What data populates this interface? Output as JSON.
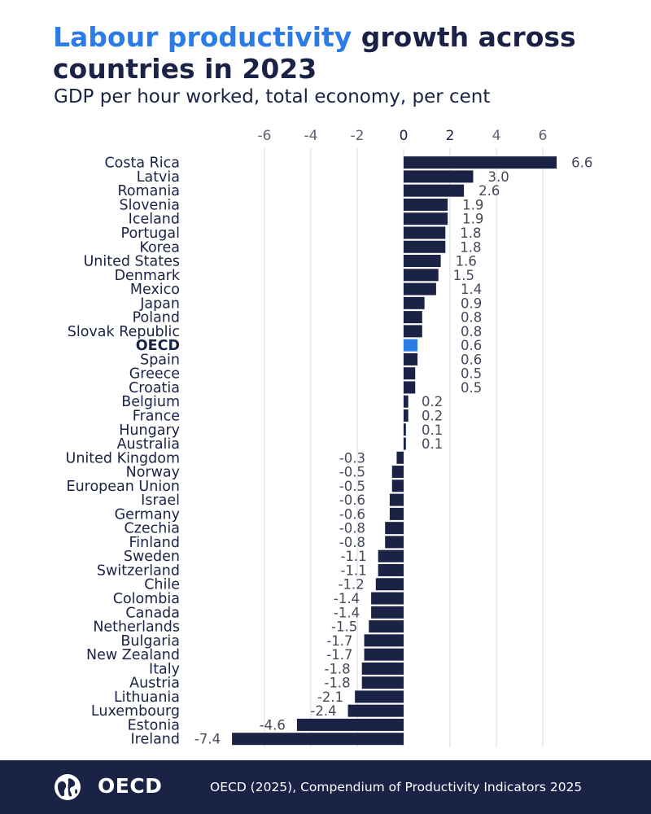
{
  "title": {
    "highlight": "Labour productivity",
    "rest": " growth across countries in 2023"
  },
  "subtitle": "GDP per hour worked, total economy, per cent",
  "colors": {
    "bar": "#1a2245",
    "highlight_bar": "#2c7ce8",
    "accent": "#2c7ce8",
    "grid": "#d9dbe3",
    "text": "#1a2245"
  },
  "chart_data": {
    "type": "bar",
    "orientation": "horizontal",
    "title": "Labour productivity growth across countries in 2023",
    "subtitle": "GDP per hour worked, total economy, per cent",
    "xlim": [
      -7.4,
      7
    ],
    "xticks": [
      -6,
      -4,
      -2,
      0,
      2,
      4,
      6
    ],
    "grid": true,
    "highlight": "OECD",
    "categories": [
      "Costa Rica",
      "Latvia",
      "Romania",
      "Slovenia",
      "Iceland",
      "Portugal",
      "Korea",
      "United States",
      "Denmark",
      "Mexico",
      "Japan",
      "Poland",
      "Slovak Republic",
      "OECD",
      "Spain",
      "Greece",
      "Croatia",
      "Belgium",
      "France",
      "Hungary",
      "Australia",
      "United Kingdom",
      "Norway",
      "European Union",
      "Israel",
      "Germany",
      "Czechia",
      "Finland",
      "Sweden",
      "Switzerland",
      "Chile",
      "Colombia",
      "Canada",
      "Netherlands",
      "Bulgaria",
      "New Zealand",
      "Italy",
      "Austria",
      "Lithuania",
      "Luxembourg",
      "Estonia",
      "Ireland"
    ],
    "values": [
      6.6,
      3.0,
      2.6,
      1.9,
      1.9,
      1.8,
      1.8,
      1.6,
      1.5,
      1.4,
      0.9,
      0.8,
      0.8,
      0.6,
      0.6,
      0.5,
      0.5,
      0.2,
      0.2,
      0.1,
      0.1,
      -0.3,
      -0.5,
      -0.5,
      -0.6,
      -0.6,
      -0.8,
      -0.8,
      -1.1,
      -1.1,
      -1.2,
      -1.4,
      -1.4,
      -1.5,
      -1.7,
      -1.7,
      -1.8,
      -1.8,
      -2.1,
      -2.4,
      -4.6,
      -7.4
    ],
    "labels": [
      "6.6",
      "3.0",
      "2.6",
      "1.9",
      "1.9",
      "1.8",
      "1.8",
      "1.6",
      "1.5",
      "1.4",
      "0.9",
      "0.8",
      "0.8",
      "0.6",
      "0.6",
      "0.5",
      "0.5",
      "0.2",
      "0.2",
      "0.1",
      "0.1",
      "-0.3",
      "-0.5",
      "-0.5",
      "-0.6",
      "-0.6",
      "-0.8",
      "-0.8",
      "-1.1",
      "-1.1",
      "-1.2",
      "-1.4",
      "-1.4",
      "-1.5",
      "-1.7",
      "-1.7",
      "-1.8",
      "-1.8",
      "-2.1",
      "-2.4",
      "-4.6",
      "-7.4"
    ]
  },
  "footer": {
    "logo_text": "OECD",
    "source": "OECD (2025), Compendium of Productivity Indicators 2025"
  }
}
